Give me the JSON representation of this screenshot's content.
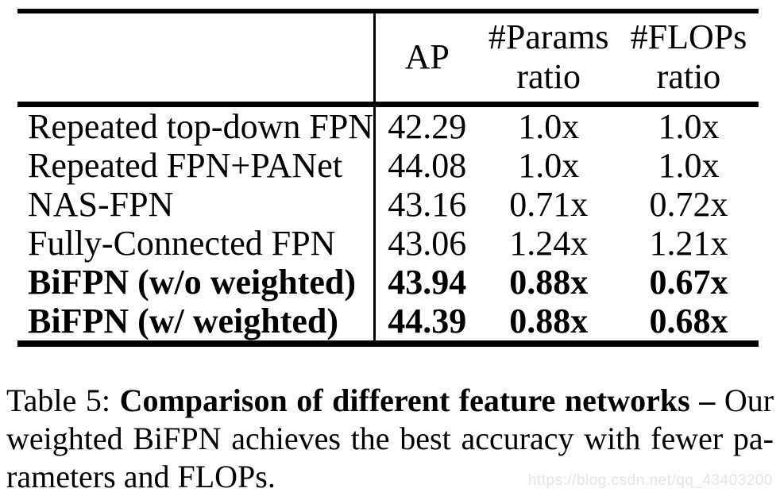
{
  "table": {
    "header": {
      "ap": "AP",
      "params": [
        "#Params",
        "ratio"
      ],
      "flops": [
        "#FLOPs",
        "ratio"
      ]
    },
    "rows": [
      {
        "label": "Repeated top-down FPN",
        "ap": "42.29",
        "params_ratio": "1.0x",
        "flops_ratio": "1.0x",
        "bold": false
      },
      {
        "label": "Repeated FPN+PANet",
        "ap": "44.08",
        "params_ratio": "1.0x",
        "flops_ratio": "1.0x",
        "bold": false
      },
      {
        "label": "NAS-FPN",
        "ap": "43.16",
        "params_ratio": "0.71x",
        "flops_ratio": "0.72x",
        "bold": false
      },
      {
        "label": "Fully-Connected FPN",
        "ap": "43.06",
        "params_ratio": "1.24x",
        "flops_ratio": "1.21x",
        "bold": false
      },
      {
        "label": "BiFPN (w/o weighted)",
        "ap": "43.94",
        "params_ratio": "0.88x",
        "flops_ratio": "0.67x",
        "bold": true
      },
      {
        "label": "BiFPN (w/ weighted)",
        "ap": "44.39",
        "params_ratio": "0.88x",
        "flops_ratio": "0.68x",
        "bold": true
      }
    ]
  },
  "caption": {
    "label": "Table 5:",
    "title": "Comparison of different feature networks –",
    "line1_rest": "Our",
    "line2": "weighted BiFPN achieves the best accuracy with fewer pa-",
    "line3": "rameters and FLOPs."
  },
  "watermark": "https://blog.csdn.net/qq_43403200",
  "colors": {
    "background": "#ffffff",
    "text": "#000000",
    "rule": "#000000",
    "watermark": "#e5e5e5"
  }
}
